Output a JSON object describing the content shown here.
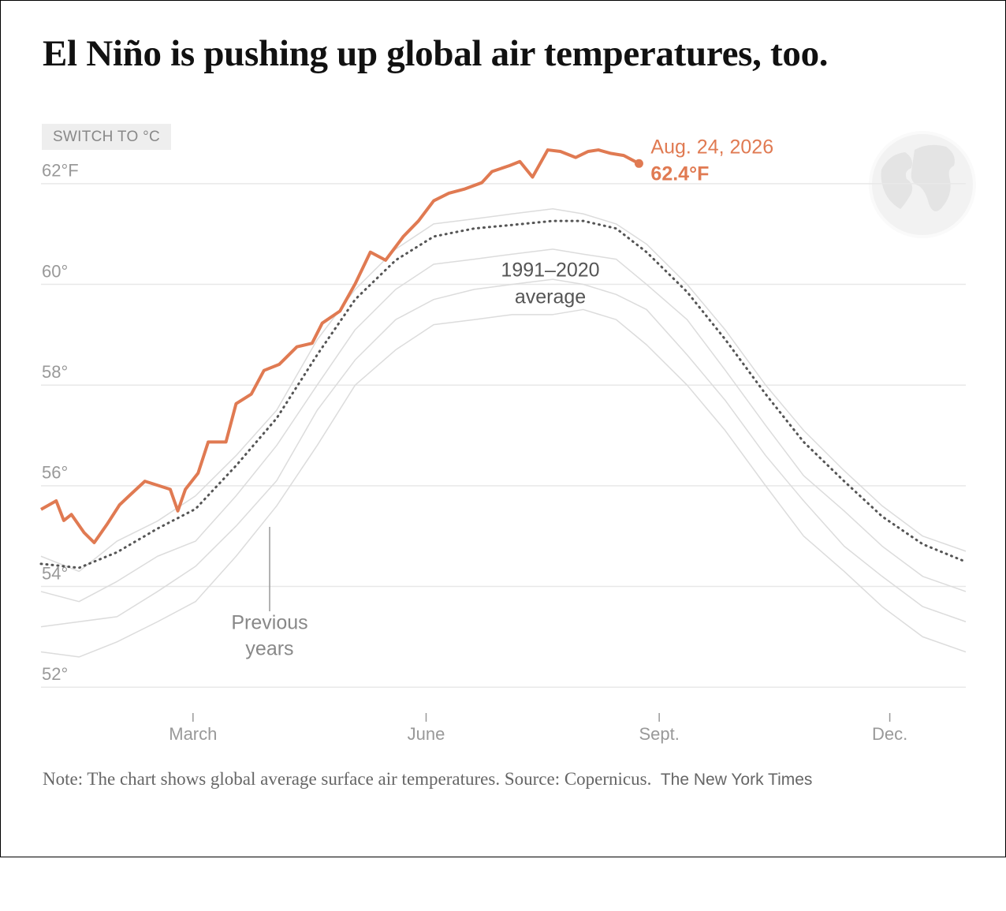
{
  "chart_data": {
    "type": "line",
    "title": "El Niño is pushing up global air temperatures, too.",
    "button": "SWITCH TO °C",
    "note": "Note: The chart shows global average surface air temperatures. Source: Copernicus.",
    "credit": "The New York Times",
    "xlim": [
      0,
      365
    ],
    "xticks": [
      {
        "value": 60,
        "label": "March"
      },
      {
        "value": 152,
        "label": "June"
      },
      {
        "value": 244,
        "label": "Sept."
      },
      {
        "value": 335,
        "label": "Dec."
      }
    ],
    "ylim": [
      51.8,
      63
    ],
    "yticks": [
      {
        "value": 52,
        "label": "52°"
      },
      {
        "value": 54,
        "label": "54°"
      },
      {
        "value": 56,
        "label": "56°"
      },
      {
        "value": 58,
        "label": "58°"
      },
      {
        "value": 60,
        "label": "60°"
      },
      {
        "value": 62,
        "label": "62°F"
      }
    ],
    "grid": true,
    "series": [
      {
        "color": "#dcdcdc",
        "style": "thin",
        "x": [
          0,
          15,
          30,
          46,
          61,
          77,
          93,
          109,
          124,
          140,
          155,
          171,
          186,
          202,
          214,
          227,
          239,
          255,
          270,
          286,
          301,
          317,
          332,
          348,
          365
        ],
        "values": [
          53.9,
          53.7,
          54.1,
          54.6,
          54.9,
          55.8,
          56.8,
          58.0,
          59.1,
          59.9,
          60.4,
          60.5,
          60.6,
          60.7,
          60.6,
          60.5,
          60.0,
          59.3,
          58.3,
          57.2,
          56.2,
          55.5,
          54.8,
          54.2,
          53.9
        ]
      },
      {
        "color": "#dcdcdc",
        "style": "thin",
        "x": [
          0,
          15,
          30,
          46,
          61,
          77,
          93,
          109,
          124,
          140,
          155,
          171,
          186,
          202,
          214,
          227,
          239,
          255,
          270,
          286,
          301,
          317,
          332,
          348,
          365
        ],
        "values": [
          53.2,
          53.3,
          53.4,
          53.9,
          54.4,
          55.2,
          56.1,
          57.5,
          58.5,
          59.3,
          59.7,
          59.9,
          60.0,
          60.1,
          60.0,
          59.8,
          59.5,
          58.6,
          57.7,
          56.6,
          55.7,
          54.8,
          54.2,
          53.6,
          53.3
        ]
      },
      {
        "color": "#dcdcdc",
        "style": "thin",
        "x": [
          0,
          15,
          30,
          46,
          61,
          77,
          93,
          109,
          124,
          140,
          155,
          171,
          186,
          202,
          214,
          227,
          239,
          255,
          270,
          286,
          301,
          317,
          332,
          348,
          365
        ],
        "values": [
          52.7,
          52.6,
          52.9,
          53.3,
          53.7,
          54.6,
          55.6,
          56.8,
          58.0,
          58.7,
          59.2,
          59.3,
          59.4,
          59.4,
          59.5,
          59.3,
          58.8,
          58.0,
          57.1,
          56.0,
          55.0,
          54.3,
          53.6,
          53.0,
          52.7
        ]
      },
      {
        "color": "#dcdcdc",
        "style": "thin",
        "x": [
          0,
          15,
          30,
          46,
          61,
          77,
          93,
          109,
          124,
          140,
          155,
          171,
          186,
          202,
          214,
          227,
          239,
          255,
          270,
          286,
          301,
          317,
          332,
          348,
          365
        ],
        "values": [
          54.6,
          54.3,
          54.9,
          55.3,
          55.8,
          56.6,
          57.5,
          58.9,
          59.9,
          60.7,
          61.2,
          61.3,
          61.4,
          61.5,
          61.4,
          61.2,
          60.8,
          60.0,
          59.1,
          58.0,
          57.1,
          56.3,
          55.6,
          55.0,
          54.7
        ]
      },
      {
        "color": "#555555",
        "style": "dotted",
        "x": [
          0,
          15,
          30,
          46,
          61,
          77,
          93,
          109,
          124,
          140,
          155,
          171,
          186,
          202,
          214,
          227,
          239,
          255,
          270,
          286,
          301,
          317,
          332,
          348,
          365
        ],
        "values": [
          54.45,
          54.37,
          54.68,
          55.15,
          55.54,
          56.4,
          57.34,
          58.6,
          59.7,
          60.48,
          60.95,
          61.11,
          61.18,
          61.26,
          61.26,
          61.11,
          60.64,
          59.85,
          58.91,
          57.82,
          56.87,
          56.09,
          55.39,
          54.84,
          54.49
        ]
      },
      {
        "color": "#e07a52",
        "style": "bold",
        "x": [
          0,
          6,
          9,
          12,
          17,
          21,
          26,
          31,
          35,
          41,
          46,
          51,
          54,
          57,
          62,
          66,
          73,
          77,
          83,
          88,
          94,
          101,
          107,
          111,
          118,
          124,
          130,
          136,
          143,
          149,
          155,
          161,
          167,
          174,
          178,
          185,
          189,
          194,
          200,
          205,
          211,
          216,
          220,
          225,
          230,
          236
        ],
        "values": [
          55.53,
          55.7,
          55.31,
          55.43,
          55.07,
          54.87,
          55.23,
          55.62,
          55.81,
          56.09,
          56.01,
          55.93,
          55.5,
          55.93,
          56.25,
          56.87,
          56.87,
          57.63,
          57.82,
          58.29,
          58.41,
          58.76,
          58.83,
          59.23,
          59.47,
          60.01,
          60.64,
          60.48,
          60.95,
          61.26,
          61.66,
          61.81,
          61.89,
          62.02,
          62.24,
          62.36,
          62.44,
          62.13,
          62.67,
          62.64,
          62.52,
          62.64,
          62.67,
          62.6,
          62.56,
          62.4
        ]
      }
    ],
    "annotations": {
      "latest_date": "Aug. 24, 2026",
      "latest_value": "62.4°F",
      "average_label": [
        "1991–2020",
        "average"
      ],
      "previous_label": [
        "Previous",
        "years"
      ]
    }
  }
}
